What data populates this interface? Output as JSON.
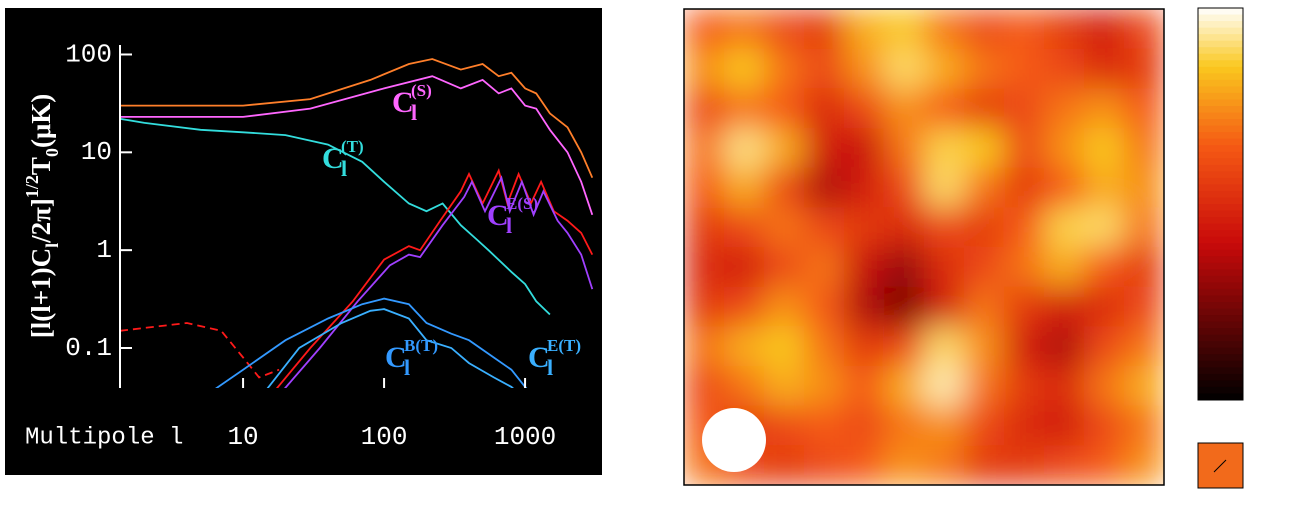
{
  "chart_data": [
    {
      "type": "line",
      "log_x": true,
      "log_y": true,
      "xlabel": "Multipole l",
      "ylabel": [
        {
          "text": "[l(l+1)C"
        },
        {
          "text": "l",
          "shift": "sub"
        },
        {
          "text": "/2π]"
        },
        {
          "text": "1/2",
          "shift": "super"
        },
        {
          "text": "T"
        },
        {
          "text": "0",
          "shift": "sub"
        },
        {
          "text": "(μK)"
        }
      ],
      "xlim": [
        1.34,
        3400
      ],
      "ylim": [
        0.039,
        125
      ],
      "xticks": [
        10,
        100,
        1000
      ],
      "yticks": [
        0.1,
        1,
        10,
        100
      ],
      "series": [
        {
          "color": "#ff7f2a",
          "x": [
            1.34,
            5,
            10,
            30,
            80,
            150,
            220,
            350,
            500,
            650,
            800,
            1000,
            1200,
            1500,
            2000,
            2500,
            3000
          ],
          "values": [
            30,
            30,
            30,
            35,
            55,
            80,
            90,
            70,
            80,
            60,
            65,
            45,
            40,
            25,
            18,
            10,
            5.5
          ]
        },
        {
          "color": "#ff66ff",
          "label": "C",
          "label_sub": "l",
          "label_sup": "(S)",
          "x": [
            1.34,
            5,
            10,
            30,
            100,
            220,
            350,
            500,
            650,
            800,
            1000,
            1200,
            1500,
            2000,
            2500,
            3000
          ],
          "values": [
            23,
            23,
            23,
            28,
            45,
            60,
            45,
            55,
            40,
            45,
            30,
            28,
            17,
            10,
            5,
            2.3
          ]
        },
        {
          "color": "#33dddd",
          "label": "C",
          "label_sub": "l",
          "label_sup": "(T)",
          "x": [
            1.34,
            2,
            5,
            10,
            20,
            40,
            70,
            100,
            150,
            200,
            260,
            350,
            450,
            550,
            800,
            1000,
            1200,
            1500
          ],
          "values": [
            22,
            20,
            17,
            16,
            15,
            12,
            8,
            5,
            3,
            2.5,
            3,
            1.8,
            1.3,
            1.0,
            0.6,
            0.45,
            0.3,
            0.22
          ]
        },
        {
          "color": "#ff1a1a",
          "dash": true,
          "x": [
            1.34,
            4,
            7,
            10,
            13,
            18
          ],
          "values": [
            0.15,
            0.18,
            0.15,
            0.08,
            0.05,
            0.06
          ]
        },
        {
          "color": "#ff1a1a",
          "x": [
            15,
            30,
            60,
            100,
            150,
            180,
            250,
            350,
            400,
            500,
            650,
            750,
            900,
            1100,
            1300,
            1600,
            2000,
            2500,
            3000
          ],
          "values": [
            0.03,
            0.1,
            0.3,
            0.8,
            1.1,
            1.0,
            2,
            4,
            6,
            3,
            6.5,
            3,
            6,
            3,
            5,
            2.5,
            2,
            1.5,
            0.9
          ]
        },
        {
          "color": "#a040ff",
          "label": "C",
          "label_sub": "l",
          "label_sup": "E(S)",
          "x": [
            17,
            35,
            65,
            110,
            150,
            180,
            260,
            370,
            420,
            520,
            680,
            780,
            950,
            1150,
            1350,
            1700,
            2000,
            2500,
            3000
          ],
          "values": [
            0.03,
            0.1,
            0.3,
            0.7,
            0.9,
            0.85,
            1.8,
            3.5,
            5,
            2.5,
            5.5,
            2.5,
            5,
            2.3,
            4,
            2,
            1.5,
            0.9,
            0.4
          ]
        },
        {
          "color": "#3399ff",
          "label": "C",
          "label_sub": "l",
          "label_sup": "B(T)",
          "x": [
            5,
            10,
            20,
            40,
            70,
            100,
            150,
            200,
            300,
            400,
            600,
            800,
            1000,
            1200
          ],
          "values": [
            0.03,
            0.06,
            0.12,
            0.2,
            0.28,
            0.32,
            0.28,
            0.18,
            0.14,
            0.12,
            0.08,
            0.06,
            0.04,
            0.03
          ]
        },
        {
          "color": "#3ab0ff",
          "label": "C",
          "label_sub": "l",
          "label_sup": "E(T)",
          "x": [
            13,
            25,
            50,
            80,
            100,
            150,
            200,
            300,
            400,
            600,
            800,
            1000
          ],
          "values": [
            0.03,
            0.1,
            0.18,
            0.24,
            0.25,
            0.2,
            0.12,
            0.1,
            0.07,
            0.05,
            0.04,
            0.03
          ]
        }
      ]
    },
    {
      "type": "heatmap",
      "zlim": [
        0,
        100
      ],
      "values": [
        [
          65,
          70,
          60,
          55,
          80,
          85,
          70,
          60,
          65,
          55,
          45,
          60
        ],
        [
          75,
          85,
          70,
          60,
          75,
          90,
          80,
          70,
          65,
          60,
          50,
          55
        ],
        [
          60,
          70,
          65,
          50,
          60,
          75,
          65,
          55,
          60,
          70,
          75,
          65
        ],
        [
          70,
          92,
          80,
          45,
          40,
          70,
          88,
          85,
          60,
          75,
          85,
          70
        ],
        [
          65,
          80,
          60,
          35,
          45,
          60,
          90,
          70,
          55,
          65,
          80,
          75
        ],
        [
          55,
          60,
          70,
          60,
          55,
          50,
          60,
          55,
          65,
          88,
          90,
          70
        ],
        [
          50,
          45,
          60,
          70,
          40,
          30,
          50,
          60,
          70,
          80,
          65,
          55
        ],
        [
          55,
          60,
          75,
          65,
          35,
          25,
          45,
          70,
          55,
          45,
          50,
          60
        ],
        [
          70,
          80,
          85,
          70,
          55,
          60,
          90,
          75,
          45,
          35,
          60,
          70
        ],
        [
          60,
          70,
          80,
          75,
          65,
          80,
          95,
          70,
          55,
          50,
          70,
          80
        ],
        [
          65,
          55,
          60,
          65,
          60,
          70,
          75,
          60,
          50,
          45,
          60,
          70
        ],
        [
          70,
          60,
          55,
          60,
          65,
          75,
          70,
          55,
          55,
          60,
          65,
          75
        ]
      ]
    }
  ]
}
